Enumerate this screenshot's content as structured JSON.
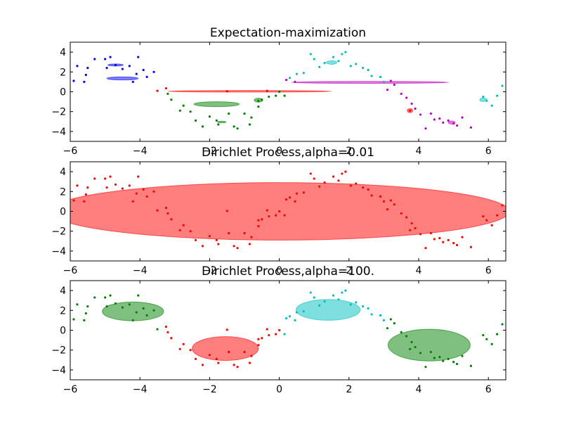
{
  "figure": {
    "background": "#ffffff",
    "axis_color": "#000000",
    "palette": {
      "blue": "#0000ff",
      "green": "#008000",
      "red": "#ff0000",
      "cyan": "#00bfbf",
      "magenta": "#bf00bf"
    }
  },
  "chart_data": [
    {
      "type": "scatter",
      "title": "Expectation-maximization",
      "xlim": [
        -6,
        6.5
      ],
      "ylim": [
        -5,
        5
      ],
      "xticks": [
        -6,
        -4,
        -2,
        0,
        2,
        4,
        6
      ],
      "yticks": [
        -4,
        -2,
        0,
        2,
        4
      ],
      "xtick_labels": [
        "−6",
        "−4",
        "−2",
        "0",
        "2",
        "4",
        "6"
      ],
      "ytick_labels": [
        "−4",
        "−2",
        "0",
        "2",
        "4"
      ],
      "grid": false,
      "points": [
        {
          "x": -5.8,
          "y": 2.6,
          "c": "blue"
        },
        {
          "x": -5.9,
          "y": 1.1,
          "c": "blue"
        },
        {
          "x": -5.6,
          "y": 1.0,
          "c": "blue"
        },
        {
          "x": -5.55,
          "y": 1.7,
          "c": "blue"
        },
        {
          "x": -5.5,
          "y": 2.4,
          "c": "blue"
        },
        {
          "x": -5.3,
          "y": 3.3,
          "c": "blue"
        },
        {
          "x": -5.0,
          "y": 3.3,
          "c": "blue"
        },
        {
          "x": -4.95,
          "y": 2.4,
          "c": "blue"
        },
        {
          "x": -4.85,
          "y": 3.5,
          "c": "blue"
        },
        {
          "x": -4.7,
          "y": 2.7,
          "c": "blue"
        },
        {
          "x": -4.5,
          "y": 2.3,
          "c": "blue"
        },
        {
          "x": -4.3,
          "y": 2.6,
          "c": "blue"
        },
        {
          "x": -4.1,
          "y": 1.8,
          "c": "blue"
        },
        {
          "x": -3.9,
          "y": 2.2,
          "c": "blue"
        },
        {
          "x": -4.05,
          "y": 3.5,
          "c": "blue"
        },
        {
          "x": -3.8,
          "y": 1.5,
          "c": "blue"
        },
        {
          "x": -3.6,
          "y": 2.0,
          "c": "blue"
        },
        {
          "x": -4.2,
          "y": 1.0,
          "c": "blue"
        },
        {
          "x": -3.5,
          "y": 0.1,
          "c": "red"
        },
        {
          "x": -3.25,
          "y": 0.35,
          "c": "red"
        },
        {
          "x": -1.5,
          "y": 0.05,
          "c": "red"
        },
        {
          "x": -0.35,
          "y": 0.1,
          "c": "red"
        },
        {
          "x": 3.75,
          "y": -1.9,
          "c": "red"
        },
        {
          "x": -3.2,
          "y": -0.2,
          "c": "green"
        },
        {
          "x": -3.1,
          "y": -0.8,
          "c": "green"
        },
        {
          "x": -2.85,
          "y": -1.9,
          "c": "green"
        },
        {
          "x": -2.75,
          "y": -1.4,
          "c": "green"
        },
        {
          "x": -2.55,
          "y": -2.0,
          "c": "green"
        },
        {
          "x": -2.4,
          "y": -2.9,
          "c": "green"
        },
        {
          "x": -2.2,
          "y": -3.5,
          "c": "green"
        },
        {
          "x": -2.0,
          "y": -2.5,
          "c": "green"
        },
        {
          "x": -1.8,
          "y": -2.9,
          "c": "green"
        },
        {
          "x": -1.75,
          "y": -3.3,
          "c": "green"
        },
        {
          "x": -1.45,
          "y": -2.2,
          "c": "green"
        },
        {
          "x": -1.3,
          "y": -3.5,
          "c": "green"
        },
        {
          "x": -1.2,
          "y": -3.7,
          "c": "green"
        },
        {
          "x": -1.0,
          "y": -2.2,
          "c": "green"
        },
        {
          "x": -0.8,
          "y": -2.6,
          "c": "green"
        },
        {
          "x": -0.85,
          "y": -3.3,
          "c": "green"
        },
        {
          "x": -0.6,
          "y": -0.9,
          "c": "green"
        },
        {
          "x": -0.6,
          "y": -1.5,
          "c": "green"
        },
        {
          "x": -0.5,
          "y": -0.8,
          "c": "green"
        },
        {
          "x": -0.3,
          "y": -0.5,
          "c": "green"
        },
        {
          "x": -0.1,
          "y": -0.4,
          "c": "green"
        },
        {
          "x": 0.0,
          "y": 0.0,
          "c": "green"
        },
        {
          "x": 0.15,
          "y": -0.4,
          "c": "green"
        },
        {
          "x": 0.2,
          "y": 1.2,
          "c": "magenta"
        },
        {
          "x": 0.45,
          "y": 1.0,
          "c": "magenta"
        },
        {
          "x": 0.3,
          "y": 1.4,
          "c": "cyan"
        },
        {
          "x": 0.5,
          "y": 1.8,
          "c": "cyan"
        },
        {
          "x": 0.7,
          "y": 1.9,
          "c": "cyan"
        },
        {
          "x": 0.9,
          "y": 3.8,
          "c": "cyan"
        },
        {
          "x": 1.0,
          "y": 3.3,
          "c": "cyan"
        },
        {
          "x": 1.15,
          "y": 2.5,
          "c": "cyan"
        },
        {
          "x": 1.3,
          "y": 2.9,
          "c": "cyan"
        },
        {
          "x": 1.55,
          "y": 3.5,
          "c": "cyan"
        },
        {
          "x": 1.7,
          "y": 3.1,
          "c": "cyan"
        },
        {
          "x": 1.8,
          "y": 3.8,
          "c": "cyan"
        },
        {
          "x": 1.9,
          "y": 4.0,
          "c": "cyan"
        },
        {
          "x": 2.05,
          "y": 2.6,
          "c": "cyan"
        },
        {
          "x": 2.2,
          "y": 2.8,
          "c": "cyan"
        },
        {
          "x": 2.4,
          "y": 2.4,
          "c": "cyan"
        },
        {
          "x": 2.55,
          "y": 2.2,
          "c": "cyan"
        },
        {
          "x": 2.65,
          "y": 1.6,
          "c": "cyan"
        },
        {
          "x": 2.9,
          "y": 1.5,
          "c": "cyan"
        },
        {
          "x": 3.0,
          "y": 1.0,
          "c": "cyan"
        },
        {
          "x": 3.1,
          "y": 0.2,
          "c": "magenta"
        },
        {
          "x": 3.2,
          "y": 1.1,
          "c": "magenta"
        },
        {
          "x": 3.3,
          "y": 0.7,
          "c": "magenta"
        },
        {
          "x": 3.5,
          "y": -0.2,
          "c": "magenta"
        },
        {
          "x": 3.65,
          "y": -0.6,
          "c": "magenta"
        },
        {
          "x": 3.8,
          "y": -1.2,
          "c": "magenta"
        },
        {
          "x": 3.9,
          "y": -1.7,
          "c": "magenta"
        },
        {
          "x": 4.05,
          "y": -2.3,
          "c": "magenta"
        },
        {
          "x": 4.2,
          "y": -3.7,
          "c": "magenta"
        },
        {
          "x": 4.35,
          "y": -2.2,
          "c": "magenta"
        },
        {
          "x": 4.45,
          "y": -2.8,
          "c": "magenta"
        },
        {
          "x": 4.6,
          "y": -2.7,
          "c": "magenta"
        },
        {
          "x": 4.7,
          "y": -3.1,
          "c": "magenta"
        },
        {
          "x": 4.85,
          "y": -2.9,
          "c": "magenta"
        },
        {
          "x": 5.0,
          "y": -3.2,
          "c": "magenta"
        },
        {
          "x": 5.1,
          "y": -3.4,
          "c": "magenta"
        },
        {
          "x": 5.25,
          "y": -2.6,
          "c": "magenta"
        },
        {
          "x": 5.5,
          "y": -3.6,
          "c": "magenta"
        },
        {
          "x": 5.85,
          "y": -0.5,
          "c": "cyan"
        },
        {
          "x": 5.95,
          "y": -0.9,
          "c": "cyan"
        },
        {
          "x": 6.1,
          "y": -1.4,
          "c": "cyan"
        },
        {
          "x": 6.25,
          "y": -0.4,
          "c": "cyan"
        },
        {
          "x": 6.4,
          "y": 0.6,
          "c": "cyan"
        }
      ],
      "ellipses": [
        {
          "cx": -4.7,
          "cy": 2.7,
          "rx": 0.22,
          "ry": 0.1,
          "angle": 0,
          "c": "blue"
        },
        {
          "cx": -4.5,
          "cy": 1.35,
          "rx": 0.45,
          "ry": 0.15,
          "angle": 0,
          "c": "blue"
        },
        {
          "cx": -1.8,
          "cy": -1.25,
          "rx": 0.65,
          "ry": 0.25,
          "angle": 0,
          "c": "green"
        },
        {
          "cx": -1.65,
          "cy": -3.05,
          "rx": 0.12,
          "ry": 0.08,
          "angle": 0,
          "c": "green"
        },
        {
          "cx": -0.6,
          "cy": -0.85,
          "rx": 0.12,
          "ry": 0.2,
          "angle": 0,
          "c": "green"
        },
        {
          "cx": -0.85,
          "cy": 0.05,
          "rx": 2.35,
          "ry": 0.08,
          "angle": 0,
          "c": "red"
        },
        {
          "cx": 2.6,
          "cy": 0.95,
          "rx": 2.25,
          "ry": 0.1,
          "angle": 0,
          "c": "magenta"
        },
        {
          "cx": 1.5,
          "cy": 2.95,
          "rx": 0.15,
          "ry": 0.18,
          "angle": 0,
          "c": "cyan"
        },
        {
          "cx": 3.75,
          "cy": -1.9,
          "rx": 0.08,
          "ry": 0.2,
          "angle": 0,
          "c": "red"
        },
        {
          "cx": 4.95,
          "cy": -3.1,
          "rx": 0.1,
          "ry": 0.15,
          "angle": 0,
          "c": "magenta"
        },
        {
          "cx": 5.85,
          "cy": -0.8,
          "rx": 0.1,
          "ry": 0.18,
          "angle": 0,
          "c": "cyan"
        }
      ]
    },
    {
      "type": "scatter",
      "title": "Dirichlet Process,alpha=0.01",
      "xlim": [
        -6,
        6.5
      ],
      "ylim": [
        -5,
        5
      ],
      "xticks": [
        -6,
        -4,
        -2,
        0,
        2,
        4,
        6
      ],
      "yticks": [
        -4,
        -2,
        0,
        2,
        4
      ],
      "xtick_labels": [
        "−6",
        "−4",
        "−2",
        "0",
        "2",
        "4",
        "6"
      ],
      "ytick_labels": [
        "−4",
        "−2",
        "0",
        "2",
        "4"
      ],
      "grid": false,
      "point_color": "red",
      "ellipses": [
        {
          "cx": 0.0,
          "cy": 0.0,
          "rx": 6.6,
          "ry": 2.9,
          "angle": 0,
          "c": "red"
        }
      ]
    },
    {
      "type": "scatter",
      "title": "Dirichlet Process,alpha=100.",
      "xlim": [
        -6,
        6.5
      ],
      "ylim": [
        -5,
        5
      ],
      "xticks": [
        -6,
        -4,
        -2,
        0,
        2,
        4,
        6
      ],
      "yticks": [
        -4,
        -2,
        0,
        2,
        4
      ],
      "xtick_labels": [
        "−6",
        "−4",
        "−2",
        "0",
        "2",
        "4",
        "6"
      ],
      "ytick_labels": [
        "−4",
        "−2",
        "0",
        "2",
        "4"
      ],
      "grid": false,
      "ellipses": [
        {
          "cx": -4.2,
          "cy": 1.9,
          "rx": 0.88,
          "ry": 0.95,
          "angle": 0,
          "c": "green"
        },
        {
          "cx": -1.55,
          "cy": -1.85,
          "rx": 0.95,
          "ry": 1.2,
          "angle": 0,
          "c": "red"
        },
        {
          "cx": 1.4,
          "cy": 2.05,
          "rx": 0.92,
          "ry": 1.05,
          "angle": 0,
          "c": "cyan"
        },
        {
          "cx": 4.3,
          "cy": -1.5,
          "rx": 1.18,
          "ry": 1.6,
          "angle": 0,
          "c": "green"
        }
      ]
    }
  ]
}
